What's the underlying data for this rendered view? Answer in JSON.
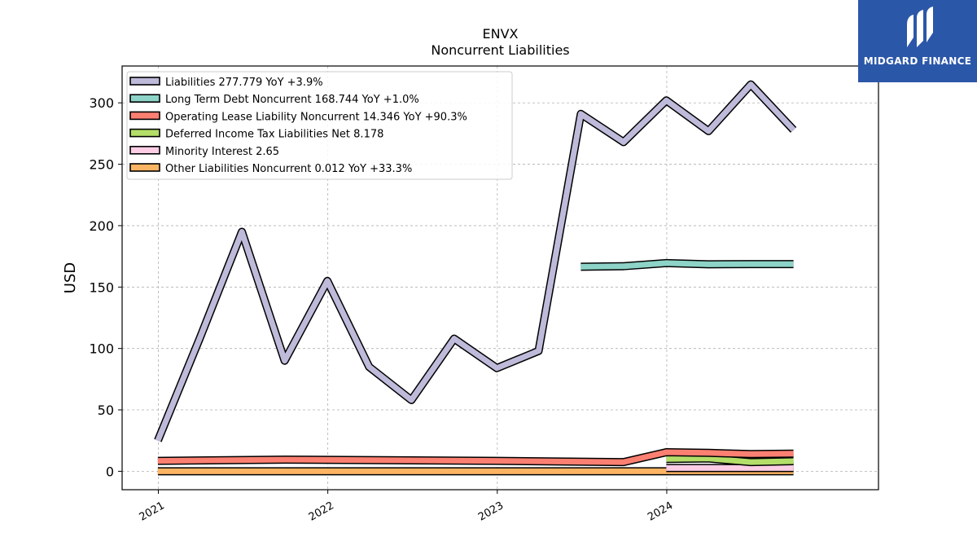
{
  "header": {
    "title": "ENVX",
    "subtitle": "Noncurrent  Liabilities"
  },
  "logo": {
    "text": "MIDGARD FINANCE",
    "icon": "midgard-logo-icon"
  },
  "chart_data": {
    "type": "line",
    "title": "ENVX",
    "subtitle": "Noncurrent  Liabilities",
    "ylabel": "USD",
    "xlabel": "",
    "xlim": [
      "2020-10-15",
      "2025-04-01"
    ],
    "ylim": [
      -15,
      330
    ],
    "yticks": [
      0,
      50,
      100,
      150,
      200,
      250,
      300
    ],
    "xticks": [
      "2021",
      "2022",
      "2023",
      "2024"
    ],
    "grid": true,
    "legend_position": "top-left",
    "series": [
      {
        "name": "Liabilities",
        "legend": "Liabilities  277.779 YoY +3.9%",
        "color": "#bebada",
        "x": [
          "2020-12-31",
          "2021-03-31",
          "2021-06-30",
          "2021-09-30",
          "2021-12-31",
          "2022-03-31",
          "2022-06-30",
          "2022-09-30",
          "2022-12-31",
          "2023-03-31",
          "2023-06-30",
          "2023-09-30",
          "2023-12-31",
          "2024-03-31",
          "2024-06-30",
          "2024-09-30"
        ],
        "values": [
          25,
          108,
          195,
          90,
          155,
          85,
          58,
          108,
          84,
          98,
          291,
          268,
          302,
          277,
          315,
          278
        ]
      },
      {
        "name": "Long Term Debt Noncurrent",
        "legend": "Long Term Debt Noncurrent  168.744 YoY +1.0%",
        "color": "#8dd3c7",
        "x": [
          "2023-06-30",
          "2023-09-30",
          "2023-12-31",
          "2024-03-31",
          "2024-06-30",
          "2024-09-30"
        ],
        "values": [
          166.5,
          167,
          169.5,
          168.5,
          168.7,
          168.7
        ]
      },
      {
        "name": "Operating Lease Liability Noncurrent",
        "legend": "Operating Lease Liability Noncurrent  14.346 YoY +90.3%",
        "color": "#fb8072",
        "x": [
          "2020-12-31",
          "2021-09-30",
          "2022-12-31",
          "2023-09-30",
          "2023-12-31",
          "2024-03-31",
          "2024-06-30",
          "2024-09-30"
        ],
        "values": [
          8.5,
          9.5,
          8.5,
          7.5,
          15.5,
          15,
          14,
          14.3
        ]
      },
      {
        "name": "Deferred Income Tax Liabilities Net",
        "legend": "Deferred Income Tax Liabilities Net  8.178",
        "color": "#b3de69",
        "x": [
          "2023-12-31",
          "2024-03-31",
          "2024-06-30",
          "2024-09-30"
        ],
        "values": [
          10,
          10.5,
          7.5,
          8.2
        ]
      },
      {
        "name": "Minority Interest",
        "legend": "Minority Interest  2.65",
        "color": "#fccde5",
        "x": [
          "2023-12-31",
          "2024-03-31",
          "2024-06-30",
          "2024-09-30"
        ],
        "values": [
          2.65,
          2.65,
          2.65,
          2.65
        ]
      },
      {
        "name": "Other Liabilities Noncurrent",
        "legend": "Other Liabilities Noncurrent  0.012 YoY +33.3%",
        "color": "#fdb462",
        "x": [
          "2020-12-31",
          "2024-09-30"
        ],
        "values": [
          0.01,
          0.012
        ]
      }
    ]
  }
}
